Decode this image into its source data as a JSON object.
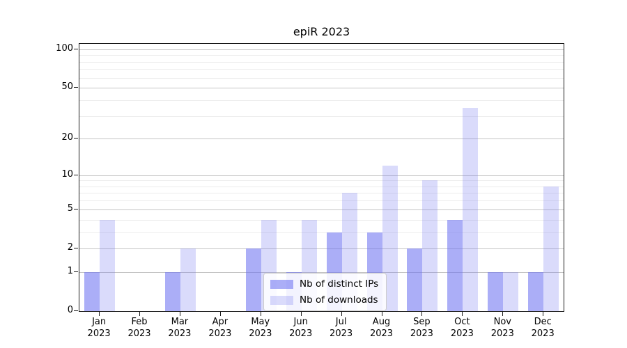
{
  "title": "epiR 2023",
  "chart_data": {
    "type": "bar",
    "title": "epiR 2023",
    "categories": [
      "Jan 2023",
      "Feb 2023",
      "Mar 2023",
      "Apr 2023",
      "May 2023",
      "Jun 2023",
      "Jul 2023",
      "Aug 2023",
      "Sep 2023",
      "Oct 2023",
      "Nov 2023",
      "Dec 2023"
    ],
    "series": [
      {
        "name": "Nb of distinct IPs",
        "color": "rgba(106,110,240,0.56)",
        "color_hex": "#a8aaf6",
        "values": [
          1,
          0,
          1,
          0,
          2,
          1,
          3,
          3,
          2,
          4,
          1,
          1
        ]
      },
      {
        "name": "Nb of downloads",
        "color": "rgba(106,110,240,0.25)",
        "color_hex": "#dadcf9",
        "values": [
          4,
          0,
          2,
          0,
          4,
          4,
          7,
          12,
          9,
          35,
          1,
          8
        ]
      }
    ],
    "yscale": "log1p",
    "ylim": [
      0,
      110
    ],
    "yticks": [
      0,
      1,
      2,
      5,
      10,
      20,
      50,
      100
    ],
    "minor_yticks": [
      3,
      4,
      6,
      7,
      8,
      9,
      30,
      40,
      60,
      70,
      80,
      90
    ],
    "grid": "horizontal",
    "legend_position": "lower center inside",
    "xlabel": "",
    "ylabel": ""
  },
  "colors": {
    "grid_major": "#c4c4c4",
    "grid_minor": "#ececec",
    "frame": "#1a1a1a",
    "text": "#000000"
  }
}
